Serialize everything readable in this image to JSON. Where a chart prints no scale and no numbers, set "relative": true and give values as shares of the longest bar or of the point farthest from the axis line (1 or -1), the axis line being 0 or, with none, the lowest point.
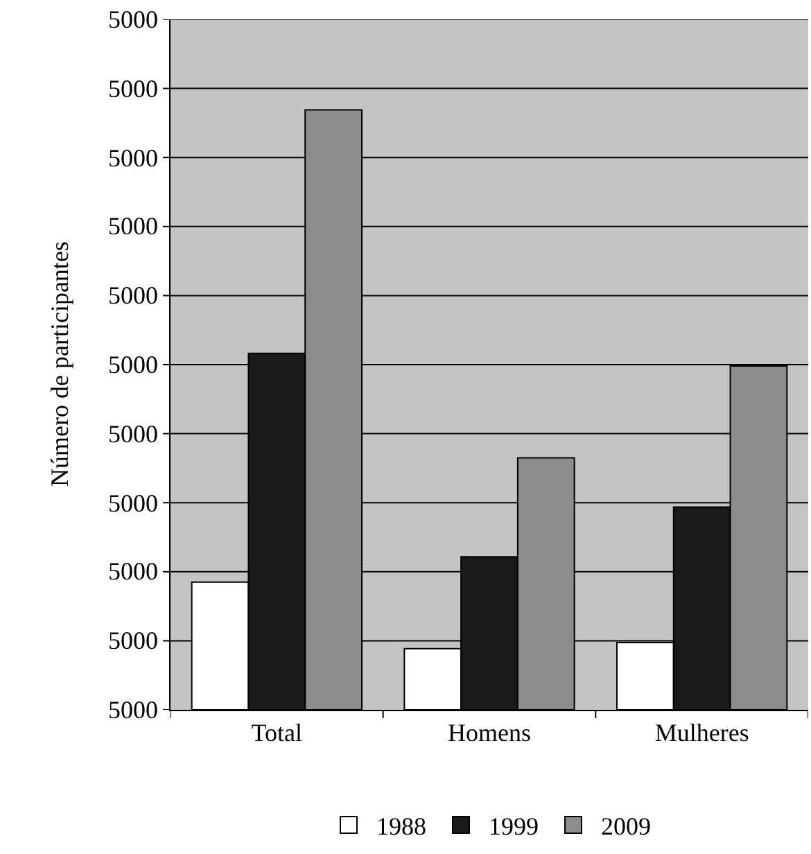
{
  "chart_data": {
    "type": "bar",
    "ylabel": "Número de participantes",
    "relative": true,
    "categories": [
      "Total",
      "Homens",
      "Mulheres"
    ],
    "series": [
      {
        "name": "1988",
        "color": "#ffffff",
        "values": [
          0.213,
          0.102,
          0.112
        ]
      },
      {
        "name": "1999",
        "color": "#1a1a1a",
        "values": [
          0.594,
          0.255,
          0.338
        ]
      },
      {
        "name": "2009",
        "color": "#8c8c8c",
        "values": [
          1,
          0.42,
          0.573
        ]
      }
    ],
    "annotations": [
      "5000",
      "5000",
      "5000",
      "5000",
      "5000",
      "5000",
      "5000",
      "5000",
      "5000",
      "5000",
      "5000"
    ],
    "grid": "y",
    "legend": "bottom"
  }
}
